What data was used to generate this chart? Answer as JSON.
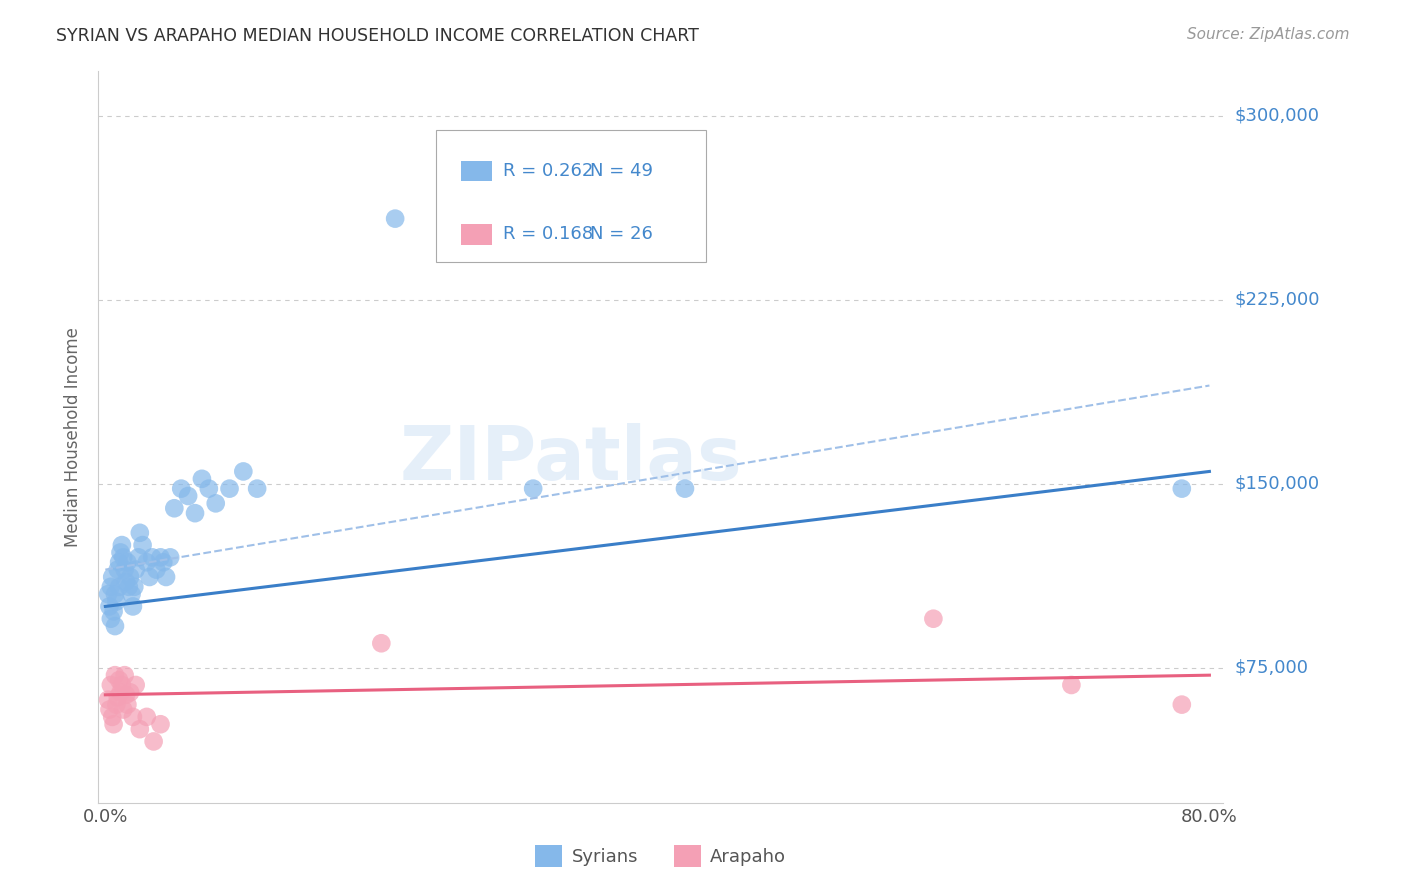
{
  "title": "SYRIAN VS ARAPAHO MEDIAN HOUSEHOLD INCOME CORRELATION CHART",
  "source": "Source: ZipAtlas.com",
  "ylabel": "Median Household Income",
  "legend_syrian_R": "0.262",
  "legend_syrian_N": "49",
  "legend_arapaho_R": "0.168",
  "legend_arapaho_N": "26",
  "ytick_labels": [
    "$75,000",
    "$150,000",
    "$225,000",
    "$300,000"
  ],
  "ytick_values": [
    75000,
    150000,
    225000,
    300000
  ],
  "ymin": 20000,
  "ymax": 318000,
  "xmin": -0.005,
  "xmax": 0.81,
  "watermark": "ZIPatlas",
  "background_color": "#ffffff",
  "grid_color": "#cccccc",
  "syrian_color": "#85B8EA",
  "arapaho_color": "#F4A0B5",
  "syrian_line_color": "#3A7EC8",
  "arapaho_line_color": "#E86080",
  "dashed_line_color": "#A0C0E8",
  "title_color": "#333333",
  "axis_label_color": "#666666",
  "ytick_color": "#4488CC",
  "syrian_x": [
    0.002,
    0.003,
    0.004,
    0.004,
    0.005,
    0.006,
    0.007,
    0.007,
    0.008,
    0.009,
    0.01,
    0.01,
    0.011,
    0.012,
    0.013,
    0.014,
    0.015,
    0.016,
    0.017,
    0.018,
    0.019,
    0.02,
    0.021,
    0.022,
    0.024,
    0.025,
    0.027,
    0.03,
    0.032,
    0.034,
    0.037,
    0.04,
    0.042,
    0.044,
    0.047,
    0.05,
    0.055,
    0.06,
    0.065,
    0.07,
    0.075,
    0.08,
    0.09,
    0.1,
    0.11,
    0.21,
    0.31,
    0.42,
    0.78
  ],
  "syrian_y": [
    105000,
    100000,
    95000,
    108000,
    112000,
    98000,
    92000,
    105000,
    102000,
    115000,
    118000,
    108000,
    122000,
    125000,
    120000,
    115000,
    110000,
    118000,
    108000,
    112000,
    105000,
    100000,
    108000,
    115000,
    120000,
    130000,
    125000,
    118000,
    112000,
    120000,
    115000,
    120000,
    118000,
    112000,
    120000,
    140000,
    148000,
    145000,
    138000,
    152000,
    148000,
    142000,
    148000,
    155000,
    148000,
    258000,
    148000,
    148000,
    148000
  ],
  "arapaho_x": [
    0.002,
    0.003,
    0.004,
    0.005,
    0.006,
    0.007,
    0.008,
    0.009,
    0.01,
    0.011,
    0.012,
    0.013,
    0.014,
    0.015,
    0.016,
    0.018,
    0.02,
    0.022,
    0.025,
    0.03,
    0.035,
    0.04,
    0.2,
    0.6,
    0.7,
    0.78
  ],
  "arapaho_y": [
    62000,
    58000,
    68000,
    55000,
    52000,
    72000,
    60000,
    63000,
    70000,
    65000,
    68000,
    58000,
    72000,
    64000,
    60000,
    65000,
    55000,
    68000,
    50000,
    55000,
    45000,
    52000,
    85000,
    95000,
    68000,
    60000
  ],
  "syrian_trend_x": [
    0.0,
    0.8
  ],
  "syrian_trend_y": [
    100000,
    155000
  ],
  "arapaho_trend_x": [
    0.0,
    0.8
  ],
  "arapaho_trend_y": [
    64000,
    72000
  ],
  "dashed_trend_x": [
    0.0,
    0.8
  ],
  "dashed_trend_y": [
    115000,
    190000
  ]
}
